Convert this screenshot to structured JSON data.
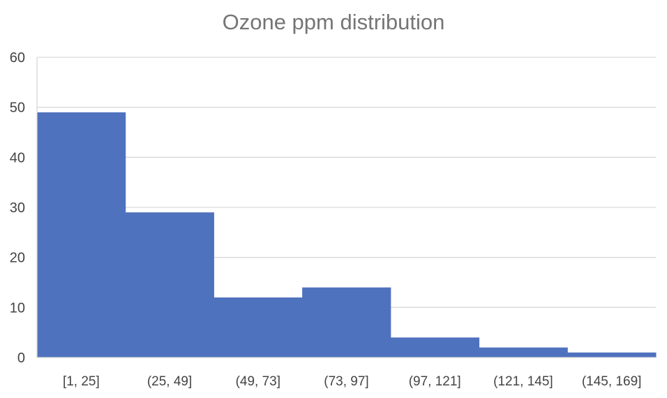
{
  "title": "Ozone ppm distribution",
  "colors": {
    "bar": "#4F72BE",
    "grid": "#D9D9D9",
    "text": "#595959",
    "title": "#757575"
  },
  "chart_data": {
    "type": "bar",
    "title": "Ozone ppm distribution",
    "xlabel": "",
    "ylabel": "",
    "categories": [
      "[1, 25]",
      "(25, 49]",
      "(49, 73]",
      "(73, 97]",
      "(97, 121]",
      "(121, 145]",
      "(145, 169]"
    ],
    "values": [
      49,
      29,
      12,
      14,
      4,
      2,
      1
    ],
    "ylim": [
      0,
      60
    ],
    "yticks": [
      0,
      10,
      20,
      30,
      40,
      50,
      60
    ],
    "grid": true,
    "legend": "none"
  }
}
